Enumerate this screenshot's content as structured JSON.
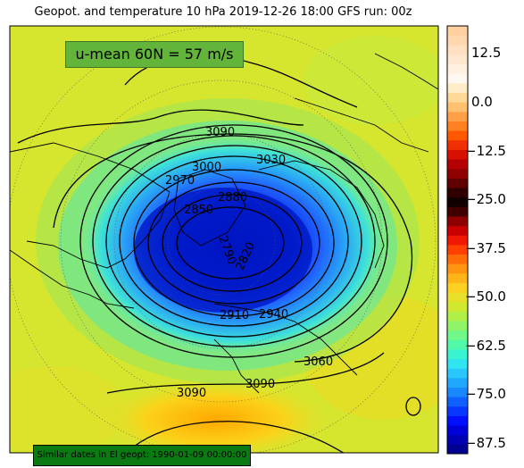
{
  "title": "Geopot. and temperature 10 hPa 2019-12-26 18:00 GFS run: 00z",
  "badge": "u-mean 60N = 57 m/s",
  "footer": "Similar dates in El geopt: 1990-01-09 00:00:00",
  "colorbar": {
    "min": -93.75,
    "max": 18.75,
    "step": 2.5,
    "ticks": [
      "12.5",
      "0.0",
      "−12.5",
      "−25.0",
      "−37.5",
      "−50.0",
      "−62.5",
      "−75.0",
      "−87.5"
    ]
  },
  "contour_labels": [
    "3090",
    "3030",
    "3000",
    "2970",
    "2880",
    "2850",
    "2790",
    "2820",
    "2910",
    "2940",
    "3060",
    "3090",
    "3090"
  ],
  "colors": {
    "background_field": "#d4e82c",
    "vortex_core": "#0018c8",
    "warm_region": "#f7c51e"
  }
}
